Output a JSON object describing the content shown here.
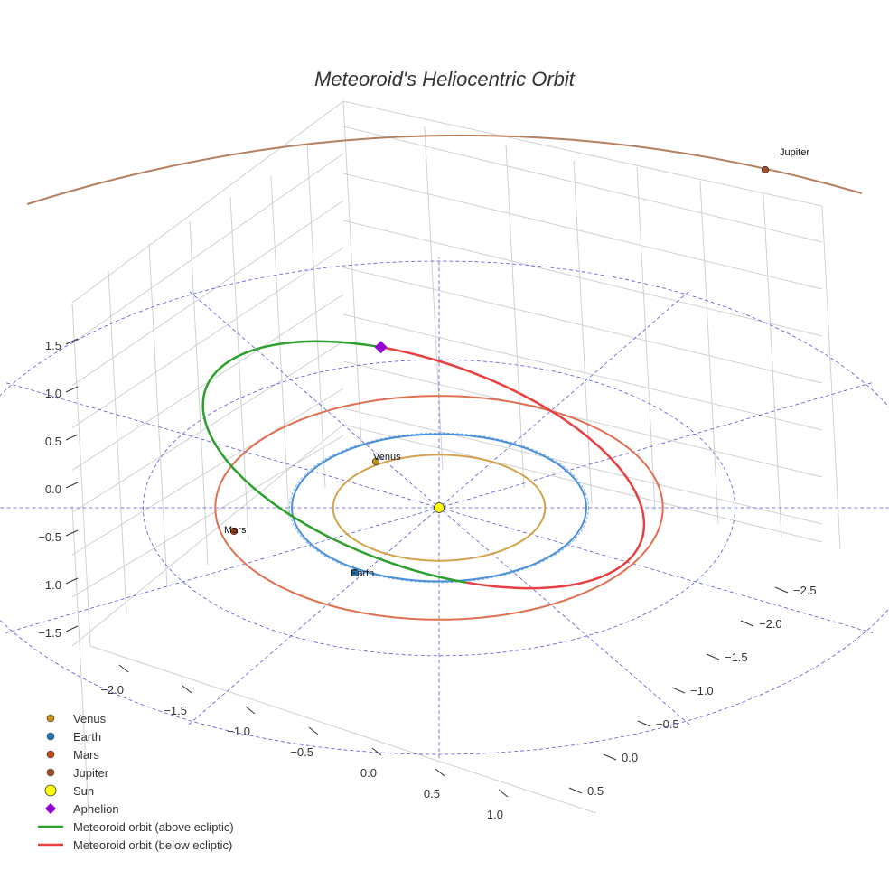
{
  "chart_data": {
    "type": "3d-orbit",
    "title": "Meteoroid's Heliocentric Orbit",
    "z_axis_ticks": [
      "1.5",
      "1.0",
      "0.5",
      "0.0",
      "−0.5",
      "−1.0",
      "−1.5"
    ],
    "x_axis_ticks": [
      "−2.0",
      "−1.5",
      "−1.0",
      "−0.5",
      "0.0",
      "0.5",
      "1.0"
    ],
    "y_axis_ticks": [
      "−2.5",
      "−2.0",
      "−1.5",
      "−1.0",
      "−0.5",
      "0.0",
      "0.5"
    ],
    "planet_orbits_au": [
      {
        "name": "Venus",
        "radius": 0.72
      },
      {
        "name": "Earth",
        "radius": 1.0
      },
      {
        "name": "Mars",
        "radius": 1.52
      },
      {
        "name": "Jupiter",
        "radius": 5.2
      }
    ],
    "planet_labels": [
      "Venus",
      "Earth",
      "Mars",
      "Jupiter"
    ],
    "meteoroid_orbit": {
      "perihelion_au": 1.0,
      "aphelion_au": 2.15,
      "above_color": "#2ca02c",
      "below_color": "#e84040"
    },
    "colors": {
      "venus": "#c8901c",
      "earth": "#1f77b4",
      "mars": "#c0461b",
      "jupiter": "#a0522d",
      "venus_orbit": "#d4a24c",
      "earth_orbit": "#4a90d9",
      "mars_orbit": "#e07050",
      "jupiter_orbit": "#b5805f",
      "sun": "#ffff00",
      "aphelion": "#9400d3",
      "grid": "#d0d0d0",
      "reference": "#5555dd"
    },
    "legend": [
      {
        "label": "Venus",
        "marker": "dot",
        "color": "#c8901c"
      },
      {
        "label": "Earth",
        "marker": "dot",
        "color": "#1f77b4"
      },
      {
        "label": "Mars",
        "marker": "dot",
        "color": "#c0461b"
      },
      {
        "label": "Jupiter",
        "marker": "dot",
        "color": "#a0522d"
      },
      {
        "label": "Sun",
        "marker": "sun",
        "color": "#ffff00"
      },
      {
        "label": "Aphelion",
        "marker": "diamond",
        "color": "#9400d3"
      },
      {
        "label": "Meteoroid orbit (above ecliptic)",
        "marker": "line",
        "color": "#2ca02c"
      },
      {
        "label": "Meteoroid orbit (below ecliptic)",
        "marker": "line",
        "color": "#e84040"
      }
    ]
  }
}
